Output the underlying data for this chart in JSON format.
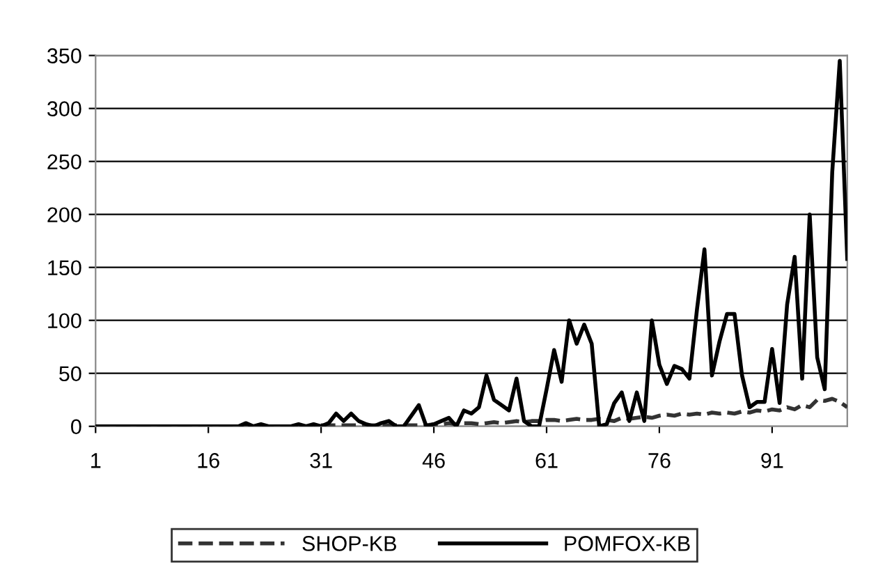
{
  "chart_data": {
    "type": "line",
    "categories": [
      "1",
      null,
      null,
      null,
      null,
      null,
      null,
      null,
      null,
      null,
      null,
      null,
      null,
      null,
      null,
      "16",
      null,
      null,
      null,
      null,
      null,
      null,
      null,
      null,
      null,
      null,
      null,
      null,
      null,
      null,
      "31",
      null,
      null,
      null,
      null,
      null,
      null,
      null,
      null,
      null,
      null,
      null,
      null,
      null,
      null,
      "46",
      null,
      null,
      null,
      null,
      null,
      null,
      null,
      null,
      null,
      null,
      null,
      null,
      null,
      null,
      "61",
      null,
      null,
      null,
      null,
      null,
      null,
      null,
      null,
      null,
      null,
      null,
      null,
      null,
      null,
      "76",
      null,
      null,
      null,
      null,
      null,
      null,
      null,
      null,
      null,
      null,
      null,
      null,
      null,
      null,
      "91",
      null,
      null,
      null,
      null,
      null,
      null,
      null,
      null,
      null,
      null
    ],
    "series": [
      {
        "name": "SHOP-KB",
        "color": "#333333",
        "line_style": "dashed",
        "values": [
          0,
          0,
          0,
          0,
          0,
          0,
          0,
          0,
          0,
          0,
          0,
          0,
          0,
          0,
          0,
          0,
          0,
          0,
          0,
          0,
          0,
          0,
          0,
          0,
          0,
          0,
          0,
          0,
          0,
          0,
          1,
          1,
          1,
          1,
          1,
          1,
          1,
          1,
          1,
          1,
          1,
          1,
          1,
          1,
          1,
          2,
          2,
          3,
          2,
          3,
          3,
          2,
          3,
          4,
          3,
          4,
          5,
          4,
          5,
          5,
          6,
          6,
          5,
          6,
          7,
          6,
          6,
          7,
          6,
          5,
          8,
          7,
          8,
          9,
          8,
          10,
          11,
          10,
          12,
          11,
          12,
          11,
          13,
          12,
          13,
          12,
          14,
          13,
          15,
          14,
          16,
          15,
          18,
          16,
          20,
          18,
          25,
          24,
          26,
          23,
          18
        ]
      },
      {
        "name": "POMFOX-KB",
        "color": "#000000",
        "line_style": "solid",
        "values": [
          0,
          0,
          0,
          0,
          0,
          0,
          0,
          0,
          0,
          0,
          0,
          0,
          0,
          0,
          0,
          0,
          0,
          0,
          0,
          0,
          3,
          0,
          2,
          0,
          0,
          0,
          0,
          2,
          0,
          2,
          0,
          3,
          12,
          5,
          12,
          5,
          2,
          0,
          3,
          5,
          0,
          0,
          10,
          20,
          0,
          2,
          5,
          8,
          0,
          15,
          12,
          18,
          48,
          25,
          20,
          15,
          45,
          5,
          0,
          0,
          35,
          72,
          42,
          100,
          78,
          96,
          78,
          0,
          2,
          22,
          32,
          5,
          32,
          5,
          100,
          58,
          40,
          57,
          54,
          45,
          110,
          167,
          48,
          80,
          106,
          106,
          48,
          18,
          23,
          23,
          73,
          22,
          115,
          160,
          45,
          200,
          65,
          35,
          240,
          345,
          158
        ]
      }
    ],
    "ylim": [
      0,
      350
    ],
    "yticks": [
      0,
      50,
      100,
      150,
      200,
      250,
      300,
      350
    ],
    "grid": "y",
    "legend": "bottom",
    "marker": "none"
  }
}
